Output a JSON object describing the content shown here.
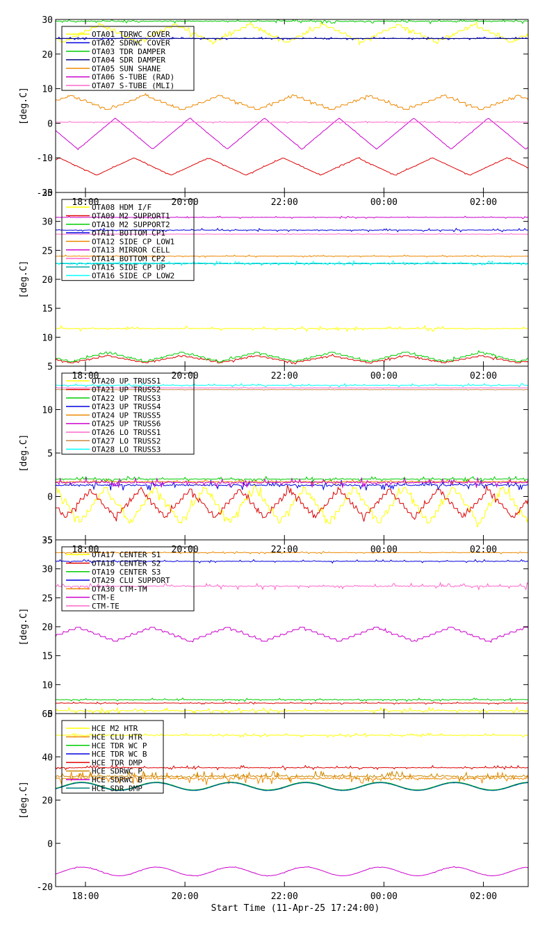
{
  "figure": {
    "xlabel": "Start Time (11-Apr-25 17:24:00)"
  },
  "chart_data": [
    {
      "type": "line",
      "ylabel": "[deg.C]",
      "ylim": [
        -20,
        30
      ],
      "yticks": [
        -20,
        -10,
        0,
        10,
        20,
        30
      ],
      "xlim": [
        17.4,
        26.9
      ],
      "xticks": [
        {
          "v": 18,
          "label": "18:00"
        },
        {
          "v": 20,
          "label": "20:00"
        },
        {
          "v": 22,
          "label": "22:00"
        },
        {
          "v": 24,
          "label": "00:00"
        },
        {
          "v": 26,
          "label": "02:00"
        }
      ],
      "show_xtick_labels": false,
      "legend": {
        "placement": "top-left"
      },
      "series": [
        {
          "name": "OTA01 TDRWC COVER",
          "color": "#ffff00",
          "shape": "step",
          "base": 26,
          "amp": 2.5,
          "period": 1.5,
          "phase": 0.3,
          "noise": 1.0
        },
        {
          "name": "OTA02 SDRWC COVER",
          "color": "#0000dd",
          "shape": "flat",
          "base": 24.5,
          "amp": 0.3,
          "period": 1.5,
          "phase": 0,
          "noise": 0.4
        },
        {
          "name": "OTA03 TDR DAMPER",
          "color": "#00cc00",
          "shape": "flat",
          "base": 29.5,
          "amp": 0.4,
          "period": 1.5,
          "phase": 0,
          "noise": 0.8
        },
        {
          "name": "OTA04 SDR DAMPER",
          "color": "#000080",
          "shape": "flat",
          "base": 24.5,
          "amp": 0.2,
          "period": 1.5,
          "phase": 0,
          "noise": 0.2
        },
        {
          "name": "OTA05 SUN SHANE",
          "color": "#ee8800",
          "shape": "step",
          "base": 6,
          "amp": 2.0,
          "period": 1.5,
          "phase": 0.7,
          "noise": 0.6
        },
        {
          "name": "OTA06 S-TUBE (RAD)",
          "color": "#cc00cc",
          "shape": "tri",
          "base": -3,
          "amp": 4.5,
          "period": 1.5,
          "phase": 0.1,
          "noise": 0.2
        },
        {
          "name": "OTA07 S-TUBE (MLI)",
          "color": "#ff66cc",
          "shape": "flat",
          "base": 0.3,
          "amp": 0.2,
          "period": 1.5,
          "phase": 0,
          "noise": 0.3
        },
        {
          "name": "",
          "color": "#dd0000",
          "shape": "tri",
          "base": -12.5,
          "amp": 2.5,
          "period": 1.5,
          "phase": 0.85,
          "noise": 0.3
        }
      ]
    },
    {
      "type": "line",
      "ylabel": "[deg.C]",
      "ylim": [
        5,
        35
      ],
      "yticks": [
        5,
        10,
        15,
        20,
        25,
        30,
        35
      ],
      "xlim": [
        17.4,
        26.9
      ],
      "xticks": [
        {
          "v": 18,
          "label": "18:00"
        },
        {
          "v": 20,
          "label": "20:00"
        },
        {
          "v": 22,
          "label": "22:00"
        },
        {
          "v": 24,
          "label": "00:00"
        },
        {
          "v": 26,
          "label": "02:00"
        }
      ],
      "show_xtick_labels": true,
      "legend": {
        "placement": "top-left"
      },
      "series": [
        {
          "name": "OTA08 HDM I/F",
          "color": "#ffff00",
          "shape": "flat",
          "base": 11.5,
          "amp": 0.4,
          "period": 1.5,
          "phase": 0,
          "noise": 0.5
        },
        {
          "name": "OTA09 M2 SUPPORT1",
          "color": "#dd0000",
          "shape": "step",
          "base": 6.2,
          "amp": 0.6,
          "period": 1.5,
          "phase": 0.2,
          "noise": 0.3
        },
        {
          "name": "OTA10 M2 SUPPORT2",
          "color": "#00cc00",
          "shape": "step",
          "base": 6.6,
          "amp": 0.8,
          "period": 1.5,
          "phase": 0.2,
          "noise": 0.3
        },
        {
          "name": "OTA11 BOTTOM CP1",
          "color": "#0000dd",
          "shape": "flat",
          "base": 28.5,
          "amp": 0.1,
          "period": 1.5,
          "phase": 0,
          "noise": 0.3
        },
        {
          "name": "OTA12 SIDE CP LOW1",
          "color": "#ee8800",
          "shape": "flat",
          "base": 24,
          "amp": 0.1,
          "period": 1.5,
          "phase": 0,
          "noise": 0.2
        },
        {
          "name": "OTA13 MIRROR CELL",
          "color": "#cc00cc",
          "shape": "flat",
          "base": 30.7,
          "amp": 0.1,
          "period": 1.5,
          "phase": 0,
          "noise": 0.2
        },
        {
          "name": "OTA14 BOTTOM CP2",
          "color": "#ff66cc",
          "shape": "flat",
          "base": 27.8,
          "amp": 0.1,
          "period": 1.5,
          "phase": 0,
          "noise": 0.1
        },
        {
          "name": "OTA15 SIDE CP UP",
          "color": "#00aaaa",
          "shape": "flat",
          "base": 22.7,
          "amp": 0.1,
          "period": 1.5,
          "phase": 0,
          "noise": 0.1
        },
        {
          "name": "OTA16 SIDE CP LOW2",
          "color": "#00ffff",
          "shape": "flat",
          "base": 22.8,
          "amp": 0.2,
          "period": 1.5,
          "phase": 0,
          "noise": 0.4
        }
      ]
    },
    {
      "type": "line",
      "ylabel": "[deg.C]",
      "ylim": [
        -5,
        15
      ],
      "yticks": [
        -5,
        0,
        5,
        10
      ],
      "xlim": [
        17.4,
        26.9
      ],
      "xticks": [
        {
          "v": 18,
          "label": "18:00"
        },
        {
          "v": 20,
          "label": "20:00"
        },
        {
          "v": 22,
          "label": "22:00"
        },
        {
          "v": 24,
          "label": "00:00"
        },
        {
          "v": 26,
          "label": "02:00"
        }
      ],
      "show_xtick_labels": true,
      "legend": {
        "placement": "top-left"
      },
      "series": [
        {
          "name": "OTA20 UP TRUSS1",
          "color": "#ffff00",
          "shape": "step",
          "base": -1.0,
          "amp": 2.0,
          "period": 1.0,
          "phase": 0.1,
          "noise": 0.8
        },
        {
          "name": "OTA21 UP TRUSS2",
          "color": "#dd0000",
          "shape": "step",
          "base": -0.8,
          "amp": 1.6,
          "period": 1.0,
          "phase": 0.4,
          "noise": 0.5
        },
        {
          "name": "OTA22 UP TRUSS3",
          "color": "#00cc00",
          "shape": "flat",
          "base": 2.0,
          "amp": 0.2,
          "period": 1.5,
          "phase": 0,
          "noise": 0.3
        },
        {
          "name": "OTA23 UP TRUSS4",
          "color": "#0000dd",
          "shape": "flat",
          "base": 1.3,
          "amp": 0.2,
          "period": 1.5,
          "phase": 0,
          "noise": 0.6
        },
        {
          "name": "OTA24 UP TRUSS5",
          "color": "#ee8800",
          "shape": "flat",
          "base": 1.7,
          "amp": 0.1,
          "period": 1.5,
          "phase": 0,
          "noise": 0.3
        },
        {
          "name": "OTA25 UP TRUSS6",
          "color": "#cc00cc",
          "shape": "flat",
          "base": 1.6,
          "amp": 0.2,
          "period": 1.5,
          "phase": 0,
          "noise": 0.6
        },
        {
          "name": "OTA26 LO TRUSS1",
          "color": "#ff66cc",
          "shape": "flat",
          "base": 12.5,
          "amp": 0.05,
          "period": 1.5,
          "phase": 0,
          "noise": 0.05
        },
        {
          "name": "OTA27 LO TRUSS2",
          "color": "#cc8844",
          "shape": "flat",
          "base": 12.3,
          "amp": 0.05,
          "period": 1.5,
          "phase": 0,
          "noise": 0.05
        },
        {
          "name": "OTA28 LO TRUSS3",
          "color": "#00ffff",
          "shape": "flat",
          "base": 12.8,
          "amp": 0.1,
          "period": 1.5,
          "phase": 0,
          "noise": 0.2
        }
      ]
    },
    {
      "type": "line",
      "ylabel": "[deg.C]",
      "ylim": [
        5,
        35
      ],
      "yticks": [
        5,
        10,
        15,
        20,
        25,
        30,
        35
      ],
      "xlim": [
        17.4,
        26.9
      ],
      "xticks": [
        {
          "v": 18,
          "label": "18:00"
        },
        {
          "v": 20,
          "label": "20:00"
        },
        {
          "v": 22,
          "label": "22:00"
        },
        {
          "v": 24,
          "label": "00:00"
        },
        {
          "v": 26,
          "label": "02:00"
        }
      ],
      "show_xtick_labels": true,
      "legend": {
        "placement": "top-left"
      },
      "series": [
        {
          "name": "OTA17 CENTER S1",
          "color": "#ffff00",
          "shape": "flat",
          "base": 5.5,
          "amp": 0.3,
          "period": 1.5,
          "phase": 0,
          "noise": 0.6
        },
        {
          "name": "OTA18 CENTER S2",
          "color": "#dd0000",
          "shape": "flat",
          "base": 6.8,
          "amp": 0.1,
          "period": 1.5,
          "phase": 0,
          "noise": 0.2
        },
        {
          "name": "OTA19 CENTER S3",
          "color": "#00cc00",
          "shape": "flat",
          "base": 7.4,
          "amp": 0.1,
          "period": 1.5,
          "phase": 0,
          "noise": 0.3
        },
        {
          "name": "OTA29 CLU SUPPORT",
          "color": "#0000dd",
          "shape": "flat",
          "base": 31.3,
          "amp": 0.1,
          "period": 1.5,
          "phase": 0,
          "noise": 0.3
        },
        {
          "name": "OTA30 CTM-TM",
          "color": "#ee8800",
          "shape": "flat",
          "base": 32.8,
          "amp": 0.1,
          "period": 1.5,
          "phase": 0,
          "noise": 0.2
        },
        {
          "name": "CTM-E",
          "color": "#cc00cc",
          "shape": "step",
          "base": 18.7,
          "amp": 1.2,
          "period": 1.5,
          "phase": 0.6,
          "noise": 0.2
        },
        {
          "name": "CTM-TE",
          "color": "#ff66cc",
          "shape": "flat",
          "base": 27.0,
          "amp": 0.2,
          "period": 1.5,
          "phase": 0,
          "noise": 0.6
        }
      ]
    },
    {
      "type": "line",
      "ylabel": "[deg.C]",
      "ylim": [
        -20,
        60
      ],
      "yticks": [
        -20,
        0,
        20,
        40,
        60
      ],
      "xlim": [
        17.4,
        26.9
      ],
      "xticks": [
        {
          "v": 18,
          "label": "18:00"
        },
        {
          "v": 20,
          "label": "20:00"
        },
        {
          "v": 22,
          "label": "22:00"
        },
        {
          "v": 24,
          "label": "00:00"
        },
        {
          "v": 26,
          "label": "02:00"
        }
      ],
      "show_xtick_labels": true,
      "legend": {
        "placement": "top-left"
      },
      "series": [
        {
          "name": "HCE M2 HTR",
          "color": "#ffff00",
          "shape": "flat",
          "base": 50,
          "amp": 0.5,
          "period": 1.5,
          "phase": 0,
          "noise": 1.0
        },
        {
          "name": "HCE CLU HTR",
          "color": "#ee8800",
          "shape": "flat",
          "base": 30,
          "amp": 0.5,
          "period": 1.5,
          "phase": 0,
          "noise": 3.0
        },
        {
          "name": "HCE TDR WC P",
          "color": "#00cc00",
          "shape": "sine",
          "base": 26.5,
          "amp": 1.8,
          "period": 1.5,
          "phase": 0.3,
          "noise": 0.1
        },
        {
          "name": "HCE TDR WC B",
          "color": "#0000dd",
          "shape": "sine",
          "base": 26.3,
          "amp": 1.8,
          "period": 1.5,
          "phase": 0.3,
          "noise": 0.1
        },
        {
          "name": "HCE TDR DMP",
          "color": "#dd0000",
          "shape": "flat",
          "base": 35,
          "amp": 0.3,
          "period": 1.5,
          "phase": 0,
          "noise": 1.0
        },
        {
          "name": "HCE SDRWC P",
          "color": "#cc8800",
          "shape": "flat",
          "base": 31,
          "amp": 0.5,
          "period": 1.5,
          "phase": 0,
          "noise": 2.5
        },
        {
          "name": "HCE SDRWC B",
          "color": "#cc00cc",
          "shape": "sine",
          "base": -13,
          "amp": 2.0,
          "period": 1.5,
          "phase": 0.3,
          "noise": 0.3
        },
        {
          "name": "HCE SDR DMP",
          "color": "#008080",
          "shape": "sine",
          "base": 26.2,
          "amp": 1.8,
          "period": 1.5,
          "phase": 0.3,
          "noise": 0.1
        }
      ]
    }
  ]
}
